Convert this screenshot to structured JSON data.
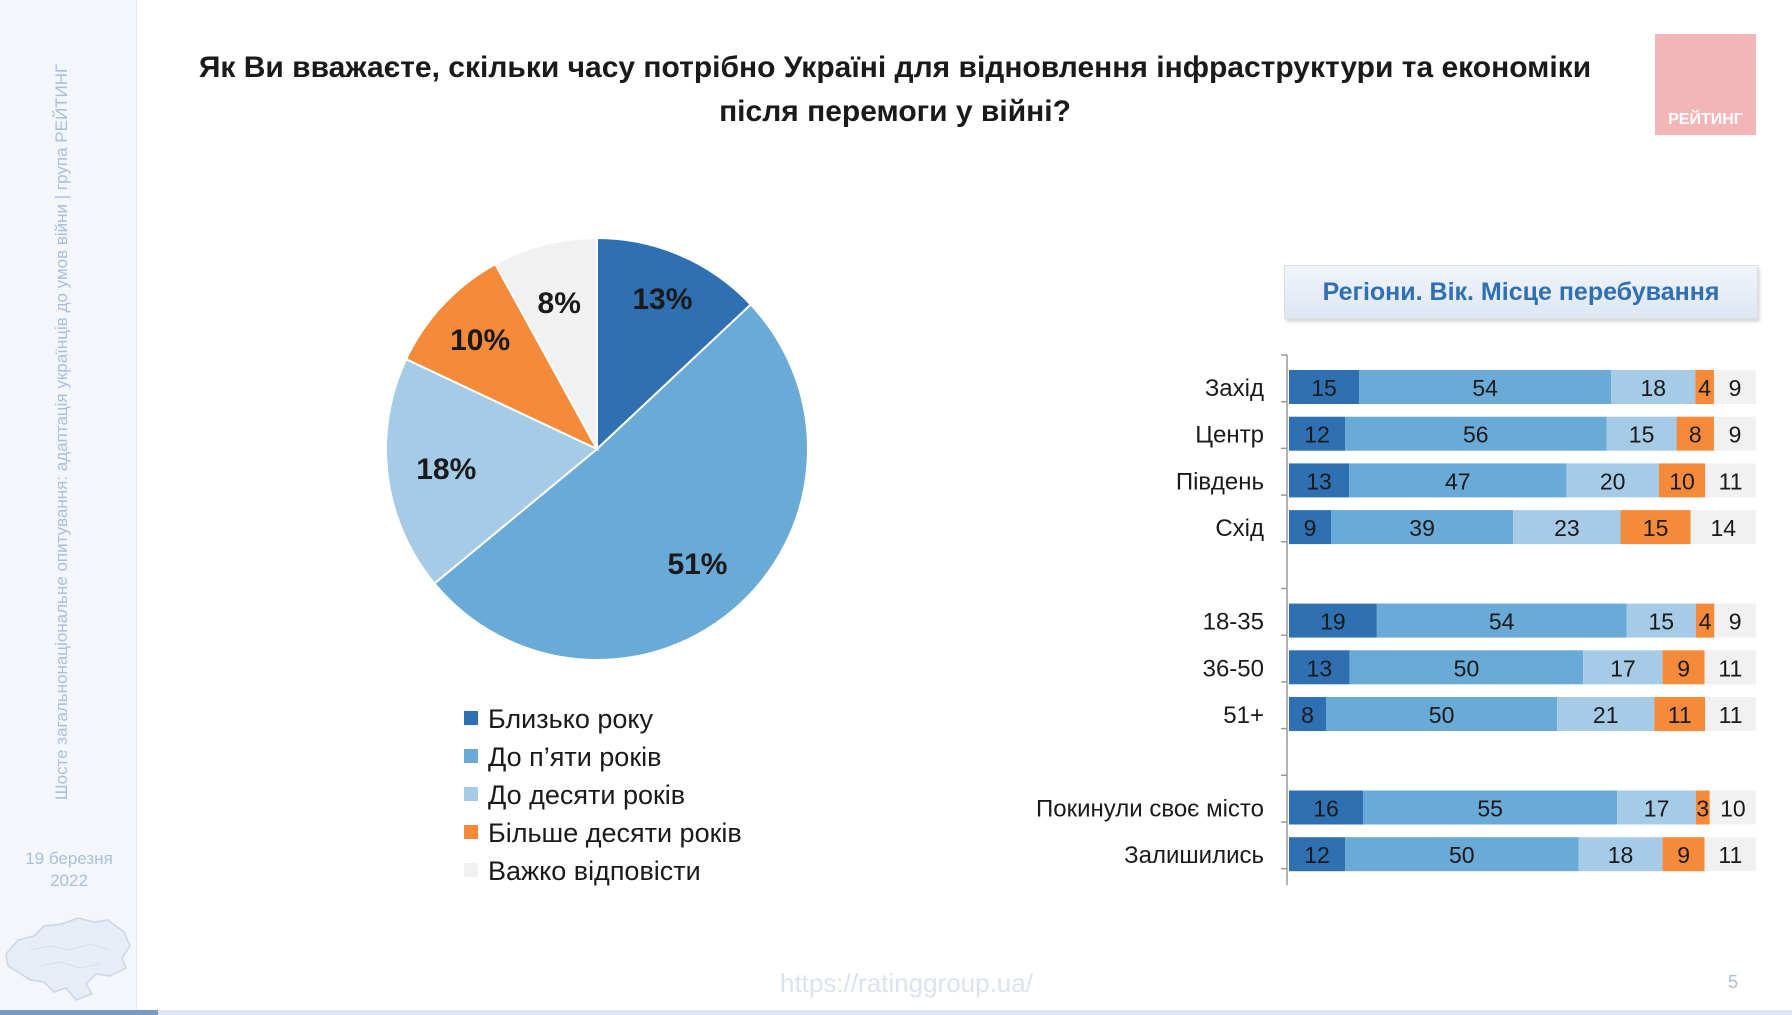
{
  "title": "Як Ви вважаєте, скільки часу потрібно Україні для відновлення інфраструктури та економіки після перемоги у війні?",
  "logo_text": "РЕЙТИНГ",
  "sidebar": {
    "vertical_text": "Шосте загальнонаціональне опитування: адаптація українців до умов війни | група РЕЙТИНГ",
    "date": "19 березня 2022"
  },
  "bars_header": "Регіони. Вік. Місце перебування",
  "footer": {
    "url": "https://ratinggroup.ua/",
    "page_number": "5"
  },
  "colors": {
    "close_to_year": "#2e70b2",
    "up_to_five": "#6aaad7",
    "up_to_ten": "#a6cbe6",
    "more_than_ten": "#f58b3a",
    "hard_to_say": "#f1f1f1"
  },
  "chart_data": [
    {
      "type": "pie",
      "categories": [
        "Близько року",
        "До п’яти років",
        "До десяти років",
        "Більше десяти років",
        "Важко відповісти"
      ],
      "values": [
        13,
        51,
        18,
        10,
        8
      ],
      "labels": [
        "13%",
        "51%",
        "18%",
        "10%",
        "8%"
      ],
      "legend_position": "bottom"
    },
    {
      "type": "bar",
      "orientation": "horizontal",
      "stacked": true,
      "xlim": [
        0,
        100
      ],
      "legend_series": [
        "Близько року",
        "До п’яти років",
        "До десяти років",
        "Більше десяти років",
        "Важко відповісти"
      ],
      "groups": [
        {
          "rows": [
            {
              "label": "Захід",
              "values": [
                15,
                54,
                18,
                4,
                9
              ]
            },
            {
              "label": "Центр",
              "values": [
                12,
                56,
                15,
                8,
                9
              ]
            },
            {
              "label": "Південь",
              "values": [
                13,
                47,
                20,
                10,
                11
              ]
            },
            {
              "label": "Схід",
              "values": [
                9,
                39,
                23,
                15,
                14
              ]
            }
          ]
        },
        {
          "rows": [
            {
              "label": "18-35",
              "values": [
                19,
                54,
                15,
                4,
                9
              ]
            },
            {
              "label": "36-50",
              "values": [
                13,
                50,
                17,
                9,
                11
              ]
            },
            {
              "label": "51+",
              "values": [
                8,
                50,
                21,
                11,
                11
              ]
            }
          ]
        },
        {
          "rows": [
            {
              "label": "Покинули своє місто",
              "values": [
                16,
                55,
                17,
                3,
                10
              ]
            },
            {
              "label": "Залишились",
              "values": [
                12,
                50,
                18,
                9,
                11
              ]
            }
          ]
        }
      ]
    }
  ]
}
